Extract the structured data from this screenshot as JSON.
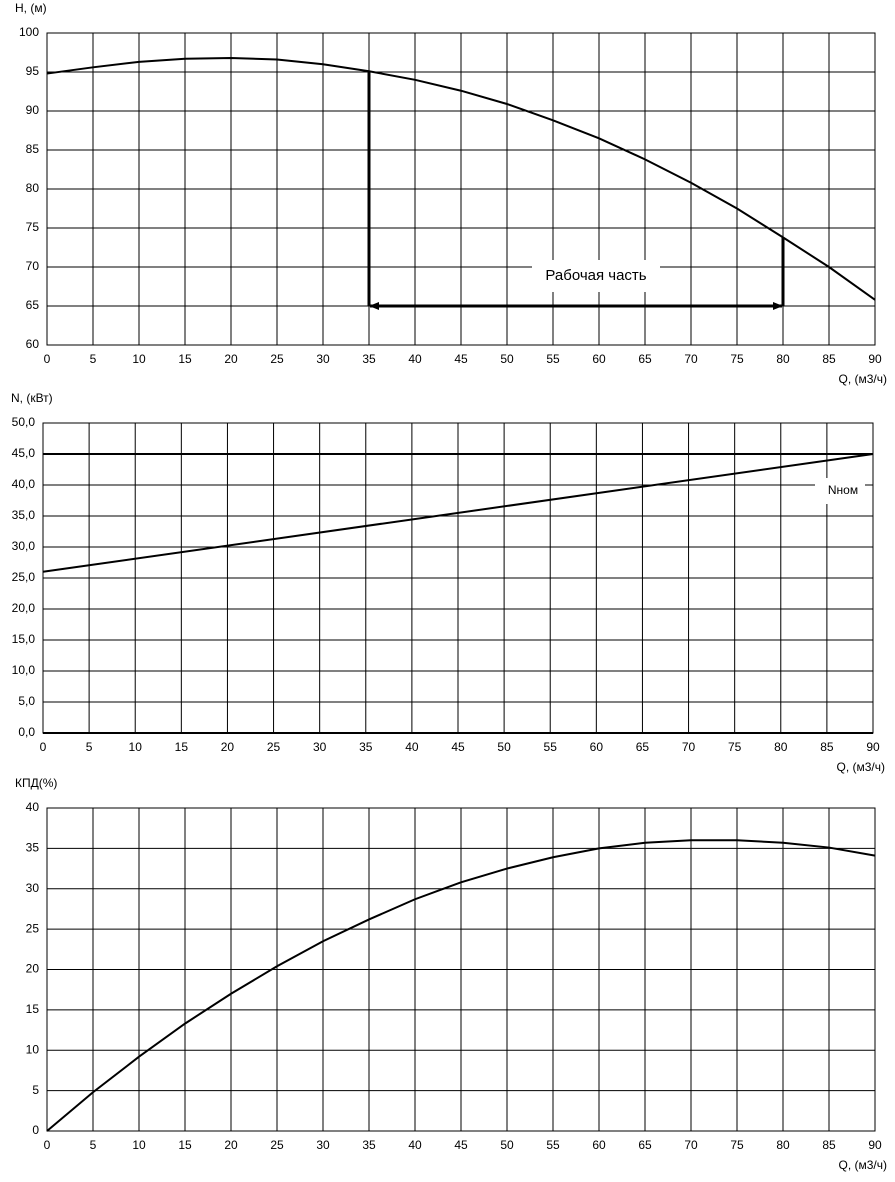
{
  "chart_data": [
    {
      "type": "line",
      "y_label": "H, (м)",
      "x_label": "Q, (м3/ч)",
      "x": [
        0,
        5,
        10,
        15,
        20,
        25,
        30,
        35,
        40,
        45,
        50,
        55,
        60,
        65,
        70,
        75,
        80,
        85,
        90
      ],
      "series": [
        {
          "color": "#000000",
          "values": [
            94.8,
            95.6,
            96.3,
            96.7,
            96.8,
            96.6,
            96.0,
            95.1,
            94.0,
            92.6,
            90.9,
            88.8,
            86.5,
            83.8,
            80.8,
            77.5,
            73.8,
            70.0,
            65.8
          ]
        }
      ],
      "xlim": [
        0,
        90
      ],
      "xticks": [
        0,
        5,
        10,
        15,
        20,
        25,
        30,
        35,
        40,
        45,
        50,
        55,
        60,
        65,
        70,
        75,
        80,
        85,
        90
      ],
      "ylim": [
        60,
        100
      ],
      "yticks": [
        60,
        65,
        70,
        75,
        80,
        85,
        90,
        95,
        100
      ],
      "grid": true,
      "working_range": {
        "x": [
          35,
          80
        ],
        "y": 65,
        "label": "Рабочая часть"
      }
    },
    {
      "type": "line",
      "y_label": "N, (кВт)",
      "x_label": "Q, (м3/ч)",
      "x": [
        0,
        90
      ],
      "series": [
        {
          "color": "#000000",
          "values": [
            26,
            45
          ]
        }
      ],
      "xlim": [
        0,
        90
      ],
      "xticks": [
        0,
        5,
        10,
        15,
        20,
        25,
        30,
        35,
        40,
        45,
        50,
        55,
        60,
        65,
        70,
        75,
        80,
        85,
        90
      ],
      "ylim": [
        0,
        50
      ],
      "yticks": [
        {
          "value": 0,
          "label": "0,0"
        },
        {
          "value": 5,
          "label": "5,0"
        },
        {
          "value": 10,
          "label": "10,0"
        },
        {
          "value": 15,
          "label": "15,0"
        },
        {
          "value": 20,
          "label": "20,0"
        },
        {
          "value": 25,
          "label": "25,0"
        },
        {
          "value": 30,
          "label": "30,0"
        },
        {
          "value": 35,
          "label": "35,0"
        },
        {
          "value": 40,
          "label": "40,0"
        },
        {
          "value": 45,
          "label": "45,0"
        },
        {
          "value": 50,
          "label": "50,0"
        }
      ],
      "grid": true,
      "reference_line": {
        "y": 45,
        "label": "Nном"
      }
    },
    {
      "type": "line",
      "y_label": "КПД(%)",
      "x_label": "Q, (м3/ч)",
      "x": [
        0,
        5,
        10,
        15,
        20,
        25,
        30,
        35,
        40,
        45,
        50,
        55,
        60,
        65,
        70,
        75,
        80,
        85,
        90
      ],
      "series": [
        {
          "color": "#000000",
          "values": [
            0,
            4.8,
            9.2,
            13.3,
            17.0,
            20.4,
            23.5,
            26.2,
            28.7,
            30.8,
            32.5,
            33.9,
            35.0,
            35.7,
            36.0,
            36.0,
            35.7,
            35.1,
            34.1
          ]
        }
      ],
      "xlim": [
        0,
        90
      ],
      "xticks": [
        0,
        5,
        10,
        15,
        20,
        25,
        30,
        35,
        40,
        45,
        50,
        55,
        60,
        65,
        70,
        75,
        80,
        85,
        90
      ],
      "ylim": [
        0,
        40
      ],
      "yticks": [
        0,
        5,
        10,
        15,
        20,
        25,
        30,
        35,
        40
      ],
      "grid": true
    }
  ]
}
